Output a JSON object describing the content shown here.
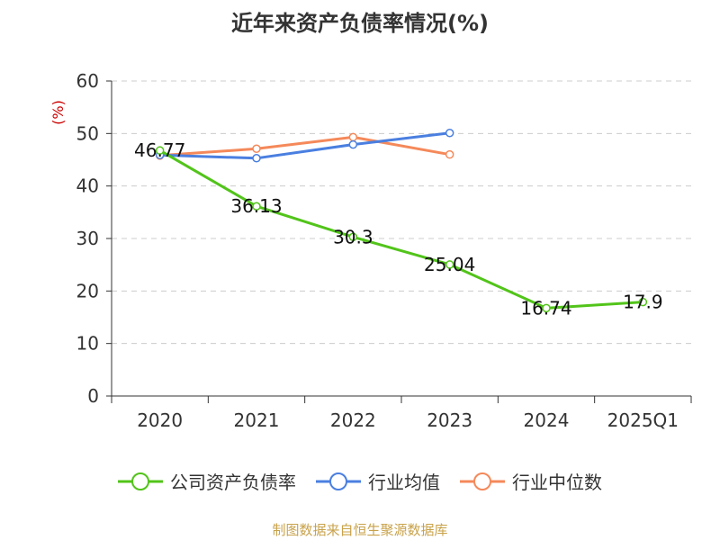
{
  "chart_data": {
    "type": "line",
    "title": "近年来资产负债率情况(%)",
    "ylabel": "(%)",
    "categories": [
      "2020",
      "2021",
      "2022",
      "2023",
      "2024",
      "2025Q1"
    ],
    "ylim": [
      0,
      60
    ],
    "yticks": [
      0,
      10,
      20,
      30,
      40,
      50,
      60
    ],
    "grid": true,
    "legend_position": "bottom",
    "series": [
      {
        "name": "公司资产负债率",
        "color": "#52c41a",
        "values": [
          46.77,
          36.13,
          30.3,
          25.04,
          16.74,
          17.9
        ],
        "labels": [
          "46.77",
          "36.13",
          "30.3",
          "25.04",
          "16.74",
          "17.9"
        ]
      },
      {
        "name": "行业均值",
        "color": "#4a7fe0",
        "values": [
          45.9,
          45.3,
          47.9,
          50.1,
          null,
          null
        ]
      },
      {
        "name": "行业中位数",
        "color": "#f5895a",
        "values": [
          45.8,
          47.1,
          49.3,
          46.0,
          null,
          null
        ]
      }
    ]
  },
  "source": "制图数据来自恒生聚源数据库"
}
